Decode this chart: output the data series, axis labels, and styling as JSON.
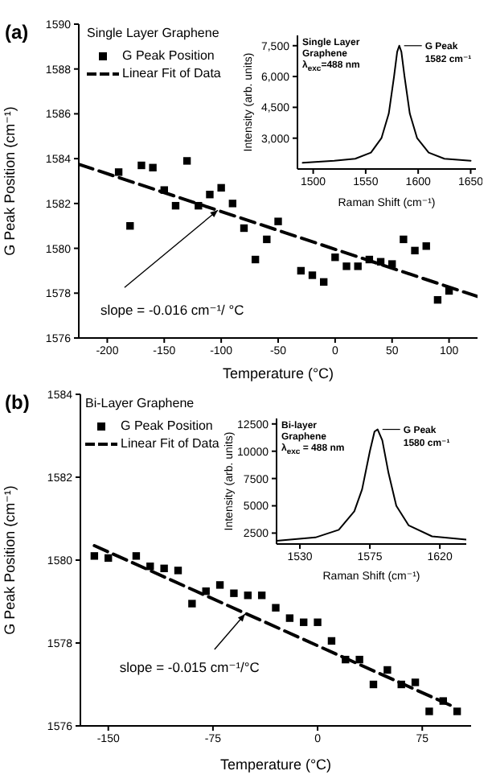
{
  "chart_data": [
    {
      "type": "scatter",
      "title": "(a)",
      "legend_title": "Single Layer Graphene",
      "xlabel": "Temperature (°C)",
      "ylabel": "G Peak Position (cm⁻¹)",
      "xlim": [
        -225,
        125
      ],
      "xticks": [
        -200,
        -150,
        -100,
        -50,
        0,
        50,
        100
      ],
      "ylim": [
        1576,
        1590
      ],
      "yticks": [
        1576,
        1578,
        1580,
        1582,
        1584,
        1586,
        1588,
        1590
      ],
      "legend": "top left",
      "series": [
        {
          "name": "G Peak Position",
          "marker": "square",
          "color": "#000000",
          "x": [
            -190,
            -180,
            -170,
            -160,
            -150,
            -140,
            -130,
            -120,
            -110,
            -100,
            -90,
            -80,
            -70,
            -60,
            -50,
            -30,
            -20,
            -10,
            0,
            10,
            20,
            30,
            40,
            50,
            60,
            70,
            80,
            90,
            100
          ],
          "values": [
            1583.4,
            1581.0,
            1583.7,
            1583.6,
            1582.6,
            1581.9,
            1583.9,
            1581.9,
            1582.4,
            1582.7,
            1582.0,
            1580.9,
            1579.5,
            1580.4,
            1581.2,
            1579.0,
            1578.8,
            1578.5,
            1579.6,
            1579.2,
            1579.2,
            1579.5,
            1579.4,
            1579.3,
            1580.4,
            1579.9,
            1580.1,
            1577.7,
            1578.1
          ]
        },
        {
          "name": "Linear Fit of Data",
          "type": "line",
          "line_style": "dashed",
          "color": "#000000",
          "x": [
            -225,
            125
          ],
          "values": [
            1583.75,
            1577.85
          ]
        }
      ],
      "annotations": [
        {
          "text": "slope = -0.016 cm⁻¹/ °C",
          "x": -103,
          "y": 1581.7
        }
      ]
    },
    {
      "type": "line",
      "xlabel": "Raman Shift (cm⁻¹)",
      "ylabel": "Intensity (arb. units)",
      "xlim": [
        1485,
        1655
      ],
      "xticks": [
        1500,
        1550,
        1600,
        1650
      ],
      "ylim": [
        1500,
        8000
      ],
      "yticks": [
        {
          "value": 3000,
          "label": "3,000"
        },
        {
          "value": 4500,
          "label": "4,500"
        },
        {
          "value": 6000,
          "label": "6,000"
        },
        {
          "value": 7500,
          "label": "7,500"
        }
      ],
      "series": [
        {
          "color": "#000000",
          "x": [
            1490,
            1520,
            1540,
            1555,
            1565,
            1572,
            1577,
            1580,
            1582,
            1584,
            1587,
            1592,
            1599,
            1610,
            1625,
            1650
          ],
          "values": [
            1800,
            1900,
            2000,
            2300,
            3000,
            4200,
            6000,
            7200,
            7500,
            7200,
            6000,
            4200,
            3000,
            2300,
            2000,
            1900
          ]
        }
      ],
      "annotations": [
        "Single Layer\nGraphene",
        "λ$_{exc}$=488 nm",
        {
          "text": "G Peak\n1582 cm⁻¹",
          "x": 1582,
          "y": 7500
        }
      ]
    },
    {
      "type": "scatter",
      "title": "(b)",
      "legend_title": "Bi-Layer Graphene",
      "xlabel": "Temperature (°C)",
      "ylabel": "G Peak Position (cm⁻¹)",
      "xlim": [
        -170,
        110
      ],
      "xticks": [
        -150,
        -75,
        0,
        75
      ],
      "ylim": [
        1576,
        1584
      ],
      "yticks": [
        1576,
        1578,
        1580,
        1582,
        1584
      ],
      "legend": "top left",
      "series": [
        {
          "name": "G Peak Position",
          "marker": "square",
          "color": "#000000",
          "x": [
            -160,
            -150,
            -130,
            -120,
            -110,
            -100,
            -90,
            -80,
            -70,
            -60,
            -50,
            -40,
            -30,
            -20,
            -10,
            0,
            10,
            20,
            30,
            40,
            50,
            60,
            70,
            80,
            90,
            100
          ],
          "values": [
            1580.1,
            1580.05,
            1580.1,
            1579.85,
            1579.8,
            1579.75,
            1578.95,
            1579.25,
            1579.4,
            1579.2,
            1579.15,
            1579.15,
            1578.85,
            1578.6,
            1578.5,
            1578.5,
            1578.05,
            1577.6,
            1577.6,
            1577.0,
            1577.35,
            1577.0,
            1577.05,
            1576.35,
            1576.6,
            1576.35
          ]
        },
        {
          "name": "Linear Fit of Data",
          "type": "line",
          "line_style": "dashed",
          "color": "#000000",
          "x": [
            -160,
            95
          ],
          "values": [
            1580.35,
            1576.5
          ]
        }
      ],
      "annotations": [
        {
          "text": "slope = -0.015 cm⁻¹/°C",
          "x": -52,
          "y": 1578.7
        }
      ]
    },
    {
      "type": "line",
      "xlabel": "Raman Shift (cm⁻¹)",
      "ylabel": "Intensity (arb. units)",
      "xlim": [
        1515,
        1637
      ],
      "xticks": [
        1530,
        1575,
        1620
      ],
      "ylim": [
        1500,
        13000
      ],
      "yticks": [
        2500,
        5000,
        7500,
        10000,
        12500
      ],
      "series": [
        {
          "color": "#000000",
          "x": [
            1515,
            1540,
            1555,
            1565,
            1570,
            1575,
            1578,
            1580,
            1583,
            1587,
            1592,
            1600,
            1615,
            1637
          ],
          "values": [
            1800,
            2100,
            2800,
            4500,
            6500,
            10000,
            11800,
            12000,
            11000,
            8000,
            5000,
            3200,
            2200,
            1900
          ]
        }
      ],
      "annotations": [
        "Bi-layer\nGraphene",
        "λ$_{exc}$ = 488 nm",
        {
          "text": "G Peak\n1580 cm⁻¹",
          "x": 1580,
          "y": 12000
        }
      ]
    }
  ]
}
